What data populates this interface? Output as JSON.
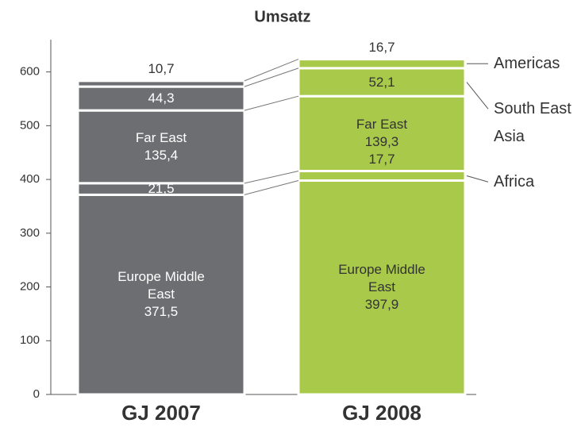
{
  "chart_data": {
    "type": "stacked_bar",
    "title": "Umsatz",
    "categories": [
      "GJ 2007",
      "GJ 2008"
    ],
    "bar_colors": [
      "#6d6e71",
      "#a9c94a"
    ],
    "label_colors": [
      "#ffffff",
      "#333333"
    ],
    "series": [
      {
        "name": "Europe Middle East",
        "values": [
          371.5,
          397.9
        ],
        "value_labels": [
          "371,5",
          "397,9"
        ]
      },
      {
        "name": "Africa",
        "values": [
          21.5,
          17.7
        ],
        "value_labels": [
          "21,5",
          "17,7"
        ]
      },
      {
        "name": "Far East",
        "values": [
          135.4,
          139.3
        ],
        "value_labels": [
          "135,4",
          "139,3"
        ]
      },
      {
        "name": "South East Asia",
        "values": [
          44.3,
          52.1
        ],
        "value_labels": [
          "44,3",
          "52,1"
        ]
      },
      {
        "name": "Americas",
        "values": [
          10.7,
          16.7
        ],
        "value_labels": [
          "10,7",
          "16,7"
        ]
      }
    ],
    "ylim": [
      0,
      660
    ],
    "yticks": [
      0,
      100,
      200,
      300,
      400,
      500,
      600
    ]
  }
}
